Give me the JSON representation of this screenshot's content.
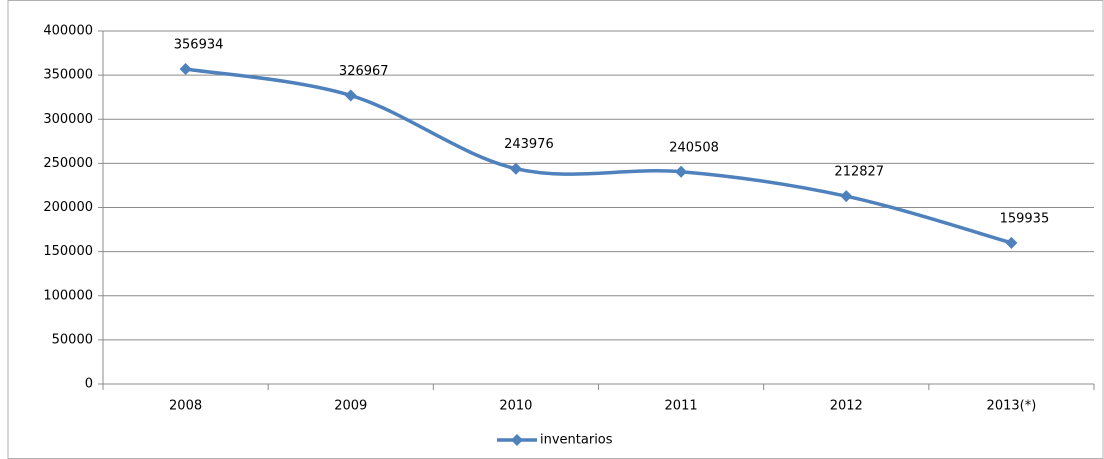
{
  "chart_data": {
    "type": "line",
    "categories": [
      "2008",
      "2009",
      "2010",
      "2011",
      "2012",
      "2013(*)"
    ],
    "series": [
      {
        "name": "inventarios",
        "color": "#4f81bd",
        "values": [
          356934,
          326967,
          243976,
          240508,
          212827,
          159935
        ]
      }
    ],
    "ylim": [
      0,
      400000
    ],
    "yticks": [
      0,
      50000,
      100000,
      150000,
      200000,
      250000,
      300000,
      350000,
      400000
    ],
    "grid": true,
    "smooth": true,
    "data_labels": true,
    "legend": "bottom"
  }
}
